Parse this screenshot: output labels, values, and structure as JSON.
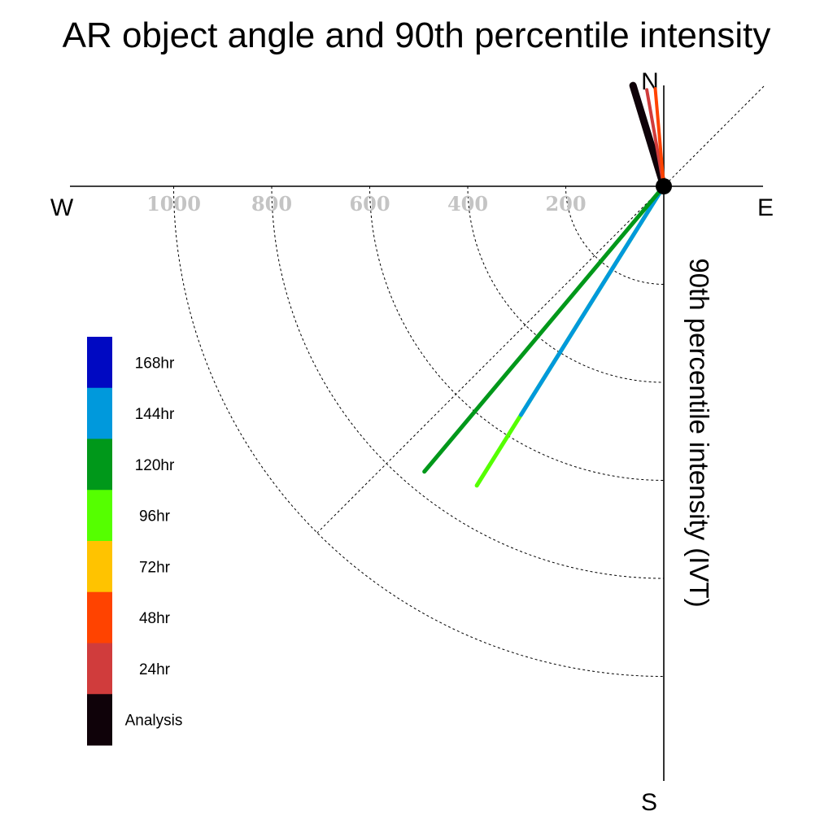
{
  "chart_data": {
    "type": "polar-vector",
    "title": "AR object angle and 90th percentile intensity",
    "axis_label": "90th percentile intensity (IVT)",
    "compass": {
      "north": "N",
      "south": "S",
      "east": "E",
      "west": "W"
    },
    "radial_ticks": [
      200,
      400,
      600,
      800,
      1000
    ],
    "radial_range": [
      0,
      1200
    ],
    "grid": true,
    "legend_placement": "bottom-left",
    "legend": [
      {
        "label": "168hr",
        "color": "#0009c2"
      },
      {
        "label": "144hr",
        "color": "#0099dc"
      },
      {
        "label": "120hr",
        "color": "#00981a"
      },
      {
        "label": "96hr",
        "color": "#55ff00"
      },
      {
        "label": "72hr",
        "color": "#ffc300"
      },
      {
        "label": "48hr",
        "color": "#ff4300"
      },
      {
        "label": "24hr",
        "color": "#d03c3c"
      },
      {
        "label": "Analysis",
        "color": "#0f0209"
      }
    ],
    "series": [
      {
        "name": "Analysis",
        "color": "#0f0209",
        "direction_deg": 343,
        "intensity": 215
      },
      {
        "name": "24hr",
        "color": "#d03c3c",
        "direction_deg": 350,
        "intensity": 200
      },
      {
        "name": "48hr",
        "color": "#ff4300",
        "direction_deg": 355,
        "intensity": 200
      },
      {
        "name": "96hr",
        "color": "#55ff00",
        "direction_deg": 212,
        "intensity": 720
      },
      {
        "name": "144hr",
        "color": "#0099dc",
        "direction_deg": 212,
        "intensity": 550
      },
      {
        "name": "120hr",
        "color": "#00981a",
        "direction_deg": 220,
        "intensity": 760
      }
    ]
  }
}
